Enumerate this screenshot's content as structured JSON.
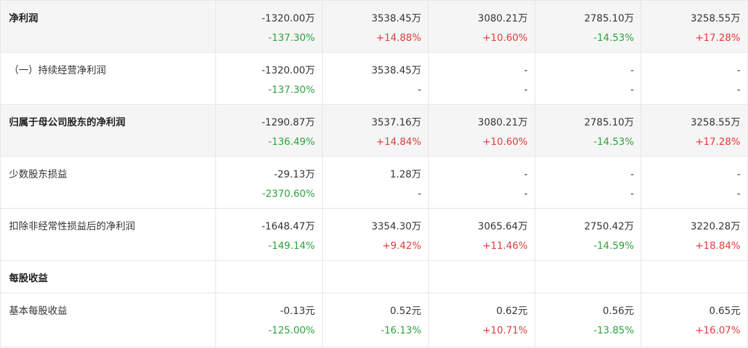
{
  "colors": {
    "up": "#e03a3a",
    "down": "#2ba23b"
  },
  "rows": [
    {
      "label": "净利润",
      "values": [
        "-1320.00万",
        "3538.45万",
        "3080.21万",
        "2785.10万",
        "3258.55万"
      ],
      "changes": [
        "-137.30%",
        "+14.88%",
        "+10.60%",
        "-14.53%",
        "+17.28%"
      ]
    },
    {
      "label": "（一）持续经营净利润",
      "values": [
        "-1320.00万",
        "3538.45万",
        "-",
        "-",
        "-"
      ],
      "changes": [
        "-137.30%",
        "-",
        "-",
        "-",
        "-"
      ]
    },
    {
      "label": "归属于母公司股东的净利润",
      "values": [
        "-1290.87万",
        "3537.16万",
        "3080.21万",
        "2785.10万",
        "3258.55万"
      ],
      "changes": [
        "-136.49%",
        "+14.84%",
        "+10.60%",
        "-14.53%",
        "+17.28%"
      ]
    },
    {
      "label": "少数股东损益",
      "values": [
        "-29.13万",
        "1.28万",
        "-",
        "-",
        "-"
      ],
      "changes": [
        "-2370.60%",
        "-",
        "-",
        "-",
        "-"
      ]
    },
    {
      "label": "扣除非经常性损益后的净利润",
      "values": [
        "-1648.47万",
        "3354.30万",
        "3065.64万",
        "2750.42万",
        "3220.28万"
      ],
      "changes": [
        "-149.14%",
        "+9.42%",
        "+11.46%",
        "-14.59%",
        "+18.84%"
      ]
    },
    {
      "label": "每股收益"
    },
    {
      "label": "基本每股收益",
      "values": [
        "-0.13元",
        "0.52元",
        "0.62元",
        "0.56元",
        "0.65元"
      ],
      "changes": [
        "-125.00%",
        "-16.13%",
        "+10.71%",
        "-13.85%",
        "+16.07%"
      ]
    }
  ]
}
